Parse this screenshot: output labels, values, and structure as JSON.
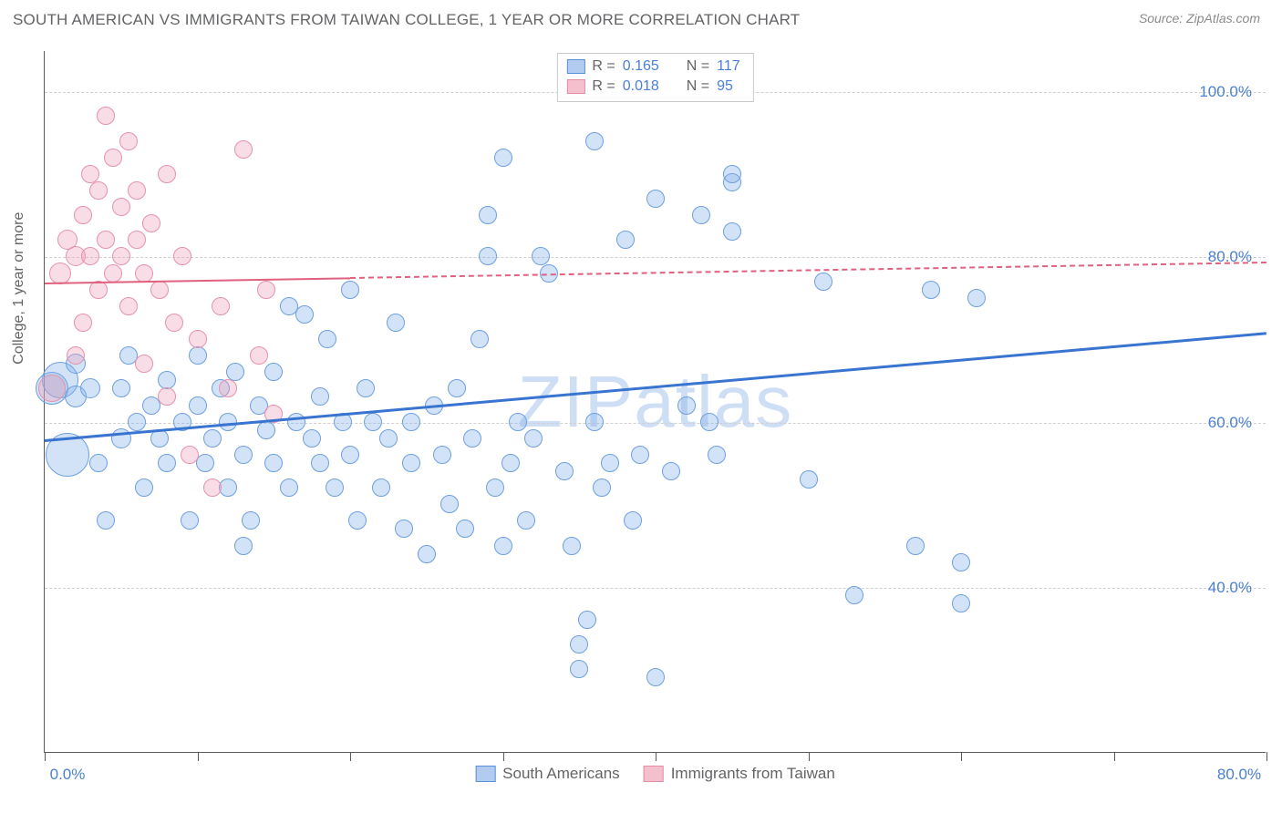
{
  "header": {
    "title": "SOUTH AMERICAN VS IMMIGRANTS FROM TAIWAN COLLEGE, 1 YEAR OR MORE CORRELATION CHART",
    "source_prefix": "Source: ",
    "source_name": "ZipAtlas.com"
  },
  "watermark": "ZIPatlas",
  "chart": {
    "type": "scatter",
    "y_axis_label": "College, 1 year or more",
    "xlim": [
      0,
      80
    ],
    "ylim": [
      20,
      105
    ],
    "y_ticks": [
      40,
      60,
      80,
      100
    ],
    "y_tick_labels": [
      "40.0%",
      "60.0%",
      "80.0%",
      "100.0%"
    ],
    "x_ticks": [
      0,
      10,
      20,
      30,
      40,
      50,
      60,
      70,
      80
    ],
    "x_tick_labels": {
      "0": "0.0%",
      "80": "80.0%"
    },
    "grid_color": "#d0d0d0",
    "axis_color": "#595959",
    "background_color": "#ffffff",
    "label_fontsize": 16,
    "tick_fontsize": 17,
    "tick_color": "#4a7fd6"
  },
  "stats": [
    {
      "swatch_fill": "#b2ccf0",
      "swatch_border": "#5b8fd8",
      "r_label": "R = ",
      "r_val": "0.165",
      "n_label": "N = ",
      "n_val": "117"
    },
    {
      "swatch_fill": "#f5c0ce",
      "swatch_border": "#e48ca3",
      "r_label": "R = ",
      "r_val": "0.018",
      "n_label": "N = ",
      "n_val": "95"
    }
  ],
  "legend": [
    {
      "swatch_fill": "#b2ccf0",
      "swatch_border": "#5b8fd8",
      "label": "South Americans"
    },
    {
      "swatch_fill": "#f5c0ce",
      "swatch_border": "#e48ca3",
      "label": "Immigrants from Taiwan"
    }
  ],
  "series": [
    {
      "name": "south_americans",
      "fill": "rgba(130,175,232,0.35)",
      "stroke": "#6da0e0",
      "marker_radius": 10,
      "trend": {
        "x1": 0,
        "y1": 58,
        "x2": 80,
        "y2": 71,
        "solid_until_x": 80,
        "color": "#3874d0",
        "width": 3
      },
      "points": [
        [
          0.5,
          64,
          18
        ],
        [
          1,
          65,
          20
        ],
        [
          1.5,
          56,
          24
        ],
        [
          2,
          63,
          12
        ],
        [
          2,
          67,
          11
        ],
        [
          3,
          64,
          11
        ],
        [
          3.5,
          55,
          10
        ],
        [
          4,
          48,
          10
        ],
        [
          5,
          58,
          11
        ],
        [
          5,
          64,
          10
        ],
        [
          5.5,
          68,
          10
        ],
        [
          6,
          60,
          10
        ],
        [
          6.5,
          52,
          10
        ],
        [
          7,
          62,
          10
        ],
        [
          7.5,
          58,
          10
        ],
        [
          8,
          65,
          10
        ],
        [
          8,
          55,
          10
        ],
        [
          9,
          60,
          10
        ],
        [
          9.5,
          48,
          10
        ],
        [
          10,
          68,
          10
        ],
        [
          10,
          62,
          10
        ],
        [
          10.5,
          55,
          10
        ],
        [
          11,
          58,
          10
        ],
        [
          11.5,
          64,
          10
        ],
        [
          12,
          52,
          10
        ],
        [
          12,
          60,
          10
        ],
        [
          12.5,
          66,
          10
        ],
        [
          13,
          45,
          10
        ],
        [
          13,
          56,
          10
        ],
        [
          13.5,
          48,
          10
        ],
        [
          14,
          62,
          10
        ],
        [
          14.5,
          59,
          10
        ],
        [
          15,
          55,
          10
        ],
        [
          15,
          66,
          10
        ],
        [
          16,
          52,
          10
        ],
        [
          16,
          74,
          10
        ],
        [
          16.5,
          60,
          10
        ],
        [
          17,
          73,
          10
        ],
        [
          17.5,
          58,
          10
        ],
        [
          18,
          55,
          10
        ],
        [
          18,
          63,
          10
        ],
        [
          18.5,
          70,
          10
        ],
        [
          19,
          52,
          10
        ],
        [
          19.5,
          60,
          10
        ],
        [
          20,
          76,
          10
        ],
        [
          20,
          56,
          10
        ],
        [
          20.5,
          48,
          10
        ],
        [
          21,
          64,
          10
        ],
        [
          21.5,
          60,
          10
        ],
        [
          22,
          52,
          10
        ],
        [
          22.5,
          58,
          10
        ],
        [
          23,
          72,
          10
        ],
        [
          23.5,
          47,
          10
        ],
        [
          24,
          55,
          10
        ],
        [
          24,
          60,
          10
        ],
        [
          25,
          44,
          10
        ],
        [
          25.5,
          62,
          10
        ],
        [
          26,
          56,
          10
        ],
        [
          26.5,
          50,
          10
        ],
        [
          27,
          64,
          10
        ],
        [
          27.5,
          47,
          10
        ],
        [
          28,
          58,
          10
        ],
        [
          28.5,
          70,
          10
        ],
        [
          29,
          80,
          10
        ],
        [
          29,
          85,
          10
        ],
        [
          29.5,
          52,
          10
        ],
        [
          30,
          45,
          10
        ],
        [
          30,
          92,
          10
        ],
        [
          30.5,
          55,
          10
        ],
        [
          31,
          60,
          10
        ],
        [
          31.5,
          48,
          10
        ],
        [
          32,
          58,
          10
        ],
        [
          32.5,
          80,
          10
        ],
        [
          33,
          78,
          10
        ],
        [
          34,
          54,
          10
        ],
        [
          34.5,
          45,
          10
        ],
        [
          35,
          30,
          10
        ],
        [
          35,
          33,
          10
        ],
        [
          35.5,
          36,
          10
        ],
        [
          36,
          60,
          10
        ],
        [
          36,
          94,
          10
        ],
        [
          36.5,
          52,
          10
        ],
        [
          37,
          55,
          10
        ],
        [
          38,
          82,
          10
        ],
        [
          38.5,
          48,
          10
        ],
        [
          39,
          56,
          10
        ],
        [
          40,
          29,
          10
        ],
        [
          40,
          87,
          10
        ],
        [
          41,
          54,
          10
        ],
        [
          42,
          62,
          10
        ],
        [
          43,
          85,
          10
        ],
        [
          43.5,
          60,
          10
        ],
        [
          44,
          56,
          10
        ],
        [
          45,
          89,
          10
        ],
        [
          45,
          83,
          10
        ],
        [
          45,
          90,
          10
        ],
        [
          50,
          53,
          10
        ],
        [
          51,
          77,
          10
        ],
        [
          53,
          39,
          10
        ],
        [
          57,
          45,
          10
        ],
        [
          58,
          76,
          10
        ],
        [
          60,
          43,
          10
        ],
        [
          60,
          38,
          10
        ],
        [
          61,
          75,
          10
        ]
      ]
    },
    {
      "name": "immigrants_taiwan",
      "fill": "rgba(237,159,183,0.35)",
      "stroke": "#e692ac",
      "marker_radius": 10,
      "trend": {
        "x1": 0,
        "y1": 77,
        "x2": 80,
        "y2": 79.5,
        "solid_until_x": 20,
        "color": "#e0607f",
        "width": 2.5
      },
      "points": [
        [
          0.5,
          64,
          15
        ],
        [
          1,
          78,
          12
        ],
        [
          1.5,
          82,
          11
        ],
        [
          2,
          80,
          11
        ],
        [
          2,
          68,
          10
        ],
        [
          2.5,
          85,
          10
        ],
        [
          2.5,
          72,
          10
        ],
        [
          3,
          90,
          10
        ],
        [
          3,
          80,
          10
        ],
        [
          3.5,
          88,
          10
        ],
        [
          3.5,
          76,
          10
        ],
        [
          4,
          82,
          10
        ],
        [
          4,
          97,
          10
        ],
        [
          4.5,
          78,
          10
        ],
        [
          4.5,
          92,
          10
        ],
        [
          5,
          86,
          10
        ],
        [
          5,
          80,
          10
        ],
        [
          5.5,
          74,
          10
        ],
        [
          5.5,
          94,
          10
        ],
        [
          6,
          82,
          10
        ],
        [
          6,
          88,
          10
        ],
        [
          6.5,
          78,
          10
        ],
        [
          6.5,
          67,
          10
        ],
        [
          7,
          84,
          10
        ],
        [
          7.5,
          76,
          10
        ],
        [
          8,
          90,
          10
        ],
        [
          8,
          63,
          10
        ],
        [
          8.5,
          72,
          10
        ],
        [
          9,
          80,
          10
        ],
        [
          9.5,
          56,
          10
        ],
        [
          10,
          70,
          10
        ],
        [
          11,
          52,
          10
        ],
        [
          11.5,
          74,
          10
        ],
        [
          12,
          64,
          10
        ],
        [
          13,
          93,
          10
        ],
        [
          14,
          68,
          10
        ],
        [
          14.5,
          76,
          10
        ],
        [
          15,
          61,
          10
        ]
      ]
    }
  ]
}
